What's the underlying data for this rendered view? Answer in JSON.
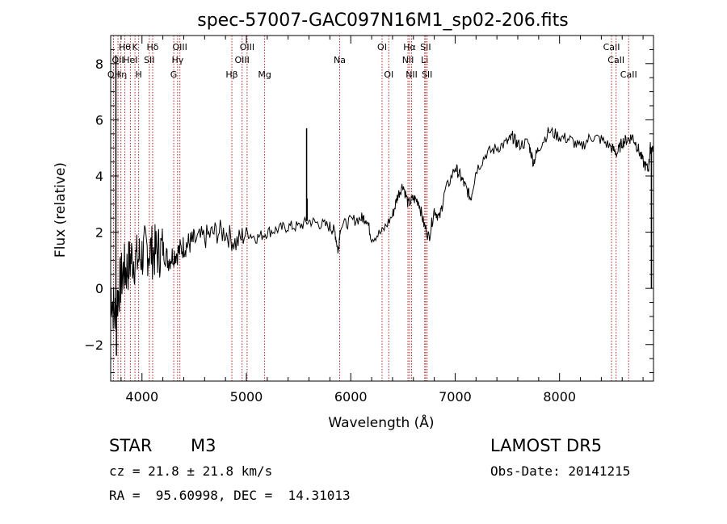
{
  "chart_data": {
    "type": "line",
    "title": "spec-57007-GAC097N16M1_sp02-206.fits",
    "xlabel": "Wavelength (Å)",
    "ylabel": "Flux (relative)",
    "xlim": [
      3700,
      8900
    ],
    "ylim": [
      -3.3,
      9.0
    ],
    "xticks": [
      4000,
      5000,
      6000,
      7000,
      8000
    ],
    "yticks": [
      -2,
      0,
      2,
      4,
      6,
      8
    ],
    "grid": false,
    "series": [
      {
        "x": [
          3700,
          3740,
          3780,
          3820,
          3860,
          3900,
          3950,
          4000,
          4050,
          4100,
          4150,
          4200,
          4250,
          4300,
          4350,
          4400,
          4450,
          4500,
          4600,
          4700,
          4800,
          4900,
          5000,
          5100,
          5200,
          5300,
          5400,
          5500,
          5600,
          5700,
          5800,
          5850,
          5880,
          5900,
          6000,
          6100,
          6150,
          6200,
          6300,
          6400,
          6450,
          6500,
          6550,
          6600,
          6650,
          6700,
          6750,
          6800,
          6850,
          6900,
          7000,
          7050,
          7100,
          7150,
          7200,
          7300,
          7400,
          7500,
          7550,
          7600,
          7700,
          7750,
          7800,
          7900,
          8000,
          8100,
          8200,
          8300,
          8400,
          8500,
          8550,
          8600,
          8650,
          8700,
          8750,
          8800,
          8850,
          8870,
          8900
        ],
        "y": [
          0.0,
          -1.0,
          0.0,
          0.6,
          0.7,
          1.1,
          1.0,
          1.2,
          1.4,
          1.3,
          1.3,
          1.4,
          1.0,
          1.2,
          1.3,
          1.5,
          1.6,
          1.7,
          1.8,
          2.0,
          2.0,
          1.6,
          2.0,
          1.8,
          2.0,
          2.1,
          2.2,
          2.2,
          2.4,
          2.3,
          2.2,
          2.0,
          1.3,
          2.2,
          2.4,
          2.5,
          2.5,
          1.8,
          2.0,
          2.6,
          3.3,
          3.7,
          3.0,
          3.2,
          3.1,
          2.3,
          1.8,
          2.8,
          2.5,
          3.4,
          4.3,
          4.0,
          3.6,
          3.2,
          4.2,
          4.8,
          5.0,
          5.2,
          5.4,
          5.1,
          5.2,
          4.5,
          5.0,
          5.6,
          5.4,
          5.3,
          5.0,
          5.4,
          5.3,
          5.0,
          4.8,
          5.2,
          5.3,
          5.4,
          5.0,
          4.5,
          4.2,
          5.0,
          5.0
        ],
        "spikes": [
          {
            "x": 3750,
            "y": 8.3
          },
          {
            "x": 3755,
            "y": -2.4
          },
          {
            "x": 5577,
            "y": 5.7
          },
          {
            "x": 5582,
            "y": 3.2
          },
          {
            "x": 8880,
            "y": 0.0
          }
        ]
      }
    ],
    "lines": [
      {
        "x": 3727,
        "row": 2,
        "label": "OII"
      },
      {
        "x": 3770,
        "row": 1,
        "label": "OII"
      },
      {
        "x": 3798,
        "row": 2,
        "label": "Hη"
      },
      {
        "x": 3835,
        "row": 0,
        "label": "Hθ"
      },
      {
        "x": 3889,
        "row": 1,
        "label": "HeI"
      },
      {
        "x": 3933,
        "row": 0,
        "label": "K"
      },
      {
        "x": 3968,
        "row": 2,
        "label": "H"
      },
      {
        "x": 4070,
        "row": 1,
        "label": "SII"
      },
      {
        "x": 4102,
        "row": 0,
        "label": "Hδ"
      },
      {
        "x": 4304,
        "row": 2,
        "label": "G"
      },
      {
        "x": 4341,
        "row": 1,
        "label": "Hγ"
      },
      {
        "x": 4363,
        "row": 0,
        "label": "OIII"
      },
      {
        "x": 4861,
        "row": 2,
        "label": "Hβ"
      },
      {
        "x": 4959,
        "row": 1,
        "label": "OIII"
      },
      {
        "x": 5007,
        "row": 0,
        "label": "OIII"
      },
      {
        "x": 5175,
        "row": 2,
        "label": "Mg"
      },
      {
        "x": 5894,
        "row": 1,
        "label": "Na"
      },
      {
        "x": 6300,
        "row": 0,
        "label": "OI"
      },
      {
        "x": 6364,
        "row": 2,
        "label": "OI"
      },
      {
        "x": 6548,
        "row": 1,
        "label": "NII"
      },
      {
        "x": 6563,
        "row": 0,
        "label": "Hα"
      },
      {
        "x": 6583,
        "row": 2,
        "label": "NII"
      },
      {
        "x": 6708,
        "row": 1,
        "label": "Li"
      },
      {
        "x": 6717,
        "row": 0,
        "label": "SII"
      },
      {
        "x": 6731,
        "row": 2,
        "label": "SII"
      },
      {
        "x": 8498,
        "row": 0,
        "label": "CaII"
      },
      {
        "x": 8542,
        "row": 1,
        "label": "CaII"
      },
      {
        "x": 8662,
        "row": 2,
        "label": "CaII"
      }
    ],
    "line_color": "#b02020"
  },
  "info": {
    "object_class": "STAR",
    "subclass": "M3",
    "survey": "LAMOST DR5",
    "cz": "cz = 21.8 ± 21.8 km/s",
    "obs_date": "Obs-Date: 20141215",
    "coords": "RA =  95.60998, DEC =  14.31013"
  }
}
